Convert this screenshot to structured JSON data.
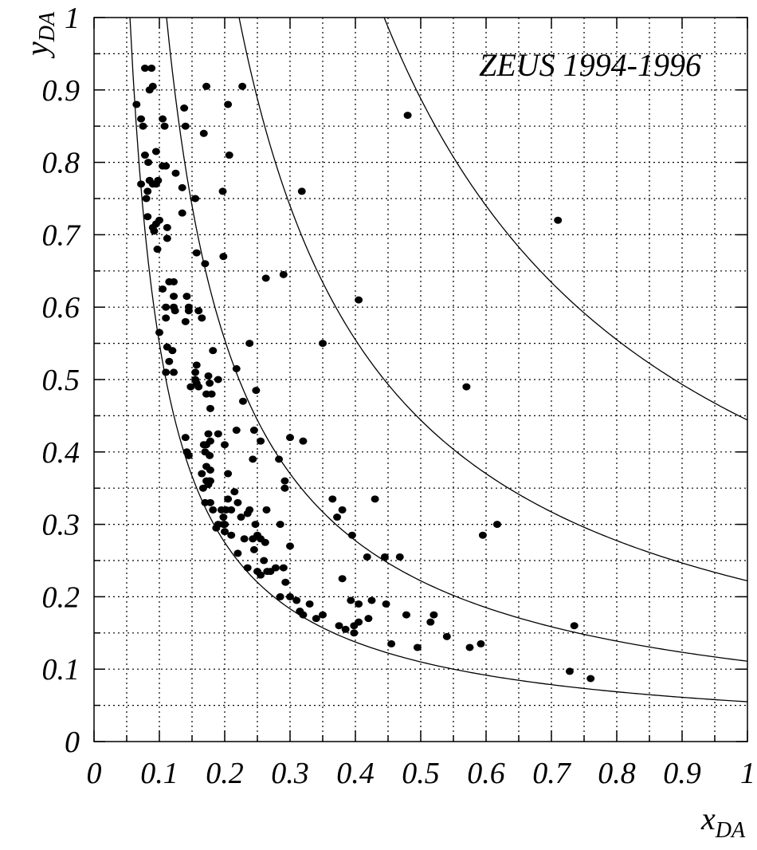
{
  "chart_data": {
    "type": "scatter",
    "title": "",
    "annotation": "ZEUS 1994-1996",
    "xlabel": "x",
    "xlabel_sub": "DA",
    "ylabel": "y",
    "ylabel_sub": "DA",
    "xlim": [
      0,
      1
    ],
    "ylim": [
      0,
      1
    ],
    "grid": true,
    "x_ticks": [
      "0",
      "0.1",
      "0.2",
      "0.3",
      "0.4",
      "0.5",
      "0.6",
      "0.7",
      "0.8",
      "0.9",
      "1"
    ],
    "y_ticks": [
      "0",
      "0.1",
      "0.2",
      "0.3",
      "0.4",
      "0.5",
      "0.6",
      "0.7",
      "0.8",
      "0.9",
      "1"
    ],
    "curves": [
      {
        "k": 0.055
      },
      {
        "k": 0.111
      },
      {
        "k": 0.222
      },
      {
        "k": 0.444
      }
    ],
    "points": [
      [
        0.065,
        0.88
      ],
      [
        0.072,
        0.86
      ],
      [
        0.075,
        0.85
      ],
      [
        0.078,
        0.93
      ],
      [
        0.088,
        0.93
      ],
      [
        0.085,
        0.9
      ],
      [
        0.09,
        0.905
      ],
      [
        0.078,
        0.81
      ],
      [
        0.095,
        0.815
      ],
      [
        0.105,
        0.86
      ],
      [
        0.108,
        0.85
      ],
      [
        0.083,
        0.8
      ],
      [
        0.105,
        0.795
      ],
      [
        0.11,
        0.795
      ],
      [
        0.085,
        0.775
      ],
      [
        0.072,
        0.77
      ],
      [
        0.098,
        0.775
      ],
      [
        0.09,
        0.77
      ],
      [
        0.095,
        0.77
      ],
      [
        0.125,
        0.785
      ],
      [
        0.082,
        0.76
      ],
      [
        0.08,
        0.75
      ],
      [
        0.138,
        0.875
      ],
      [
        0.14,
        0.85
      ],
      [
        0.082,
        0.725
      ],
      [
        0.095,
        0.715
      ],
      [
        0.1,
        0.72
      ],
      [
        0.09,
        0.71
      ],
      [
        0.092,
        0.705
      ],
      [
        0.112,
        0.71
      ],
      [
        0.112,
        0.695
      ],
      [
        0.097,
        0.68
      ],
      [
        0.135,
        0.765
      ],
      [
        0.135,
        0.73
      ],
      [
        0.155,
        0.75
      ],
      [
        0.168,
        0.84
      ],
      [
        0.172,
        0.905
      ],
      [
        0.205,
        0.88
      ],
      [
        0.227,
        0.905
      ],
      [
        0.197,
        0.76
      ],
      [
        0.207,
        0.81
      ],
      [
        0.157,
        0.675
      ],
      [
        0.17,
        0.66
      ],
      [
        0.198,
        0.67
      ],
      [
        0.105,
        0.625
      ],
      [
        0.115,
        0.635
      ],
      [
        0.122,
        0.635
      ],
      [
        0.122,
        0.615
      ],
      [
        0.11,
        0.6
      ],
      [
        0.122,
        0.6
      ],
      [
        0.124,
        0.595
      ],
      [
        0.11,
        0.585
      ],
      [
        0.142,
        0.615
      ],
      [
        0.145,
        0.6
      ],
      [
        0.145,
        0.595
      ],
      [
        0.16,
        0.595
      ],
      [
        0.14,
        0.58
      ],
      [
        0.165,
        0.585
      ],
      [
        0.1,
        0.565
      ],
      [
        0.112,
        0.545
      ],
      [
        0.12,
        0.54
      ],
      [
        0.115,
        0.525
      ],
      [
        0.11,
        0.51
      ],
      [
        0.122,
        0.51
      ],
      [
        0.157,
        0.52
      ],
      [
        0.148,
        0.49
      ],
      [
        0.155,
        0.5
      ],
      [
        0.155,
        0.51
      ],
      [
        0.157,
        0.495
      ],
      [
        0.16,
        0.49
      ],
      [
        0.175,
        0.505
      ],
      [
        0.177,
        0.495
      ],
      [
        0.172,
        0.48
      ],
      [
        0.18,
        0.48
      ],
      [
        0.178,
        0.46
      ],
      [
        0.19,
        0.5
      ],
      [
        0.182,
        0.54
      ],
      [
        0.238,
        0.55
      ],
      [
        0.228,
        0.47
      ],
      [
        0.218,
        0.515
      ],
      [
        0.248,
        0.485
      ],
      [
        0.263,
        0.64
      ],
      [
        0.29,
        0.645
      ],
      [
        0.318,
        0.76
      ],
      [
        0.35,
        0.55
      ],
      [
        0.405,
        0.61
      ],
      [
        0.48,
        0.865
      ],
      [
        0.57,
        0.49
      ],
      [
        0.71,
        0.72
      ],
      [
        0.14,
        0.42
      ],
      [
        0.142,
        0.4
      ],
      [
        0.145,
        0.395
      ],
      [
        0.168,
        0.41
      ],
      [
        0.17,
        0.4
      ],
      [
        0.172,
        0.41
      ],
      [
        0.175,
        0.425
      ],
      [
        0.178,
        0.415
      ],
      [
        0.177,
        0.395
      ],
      [
        0.172,
        0.38
      ],
      [
        0.178,
        0.375
      ],
      [
        0.19,
        0.425
      ],
      [
        0.2,
        0.41
      ],
      [
        0.218,
        0.43
      ],
      [
        0.245,
        0.43
      ],
      [
        0.255,
        0.415
      ],
      [
        0.243,
        0.39
      ],
      [
        0.205,
        0.37
      ],
      [
        0.165,
        0.37
      ],
      [
        0.172,
        0.36
      ],
      [
        0.178,
        0.36
      ],
      [
        0.175,
        0.355
      ],
      [
        0.176,
        0.36
      ],
      [
        0.167,
        0.35
      ],
      [
        0.17,
        0.33
      ],
      [
        0.178,
        0.33
      ],
      [
        0.182,
        0.32
      ],
      [
        0.195,
        0.32
      ],
      [
        0.198,
        0.31
      ],
      [
        0.202,
        0.32
      ],
      [
        0.205,
        0.335
      ],
      [
        0.21,
        0.32
      ],
      [
        0.215,
        0.345
      ],
      [
        0.22,
        0.33
      ],
      [
        0.19,
        0.3
      ],
      [
        0.198,
        0.3
      ],
      [
        0.2,
        0.3
      ],
      [
        0.2,
        0.29
      ],
      [
        0.187,
        0.295
      ],
      [
        0.225,
        0.31
      ],
      [
        0.235,
        0.315
      ],
      [
        0.238,
        0.32
      ],
      [
        0.23,
        0.28
      ],
      [
        0.243,
        0.28
      ],
      [
        0.247,
        0.3
      ],
      [
        0.25,
        0.285
      ],
      [
        0.255,
        0.28
      ],
      [
        0.262,
        0.275
      ],
      [
        0.264,
        0.32
      ],
      [
        0.285,
        0.3
      ],
      [
        0.245,
        0.265
      ],
      [
        0.21,
        0.285
      ],
      [
        0.22,
        0.26
      ],
      [
        0.235,
        0.24
      ],
      [
        0.25,
        0.235
      ],
      [
        0.255,
        0.23
      ],
      [
        0.26,
        0.25
      ],
      [
        0.265,
        0.235
      ],
      [
        0.27,
        0.235
      ],
      [
        0.278,
        0.24
      ],
      [
        0.29,
        0.24
      ],
      [
        0.3,
        0.27
      ],
      [
        0.293,
        0.22
      ],
      [
        0.3,
        0.42
      ],
      [
        0.32,
        0.415
      ],
      [
        0.283,
        0.39
      ],
      [
        0.292,
        0.36
      ],
      [
        0.292,
        0.35
      ],
      [
        0.285,
        0.2
      ],
      [
        0.3,
        0.2
      ],
      [
        0.31,
        0.195
      ],
      [
        0.315,
        0.18
      ],
      [
        0.32,
        0.175
      ],
      [
        0.33,
        0.19
      ],
      [
        0.34,
        0.17
      ],
      [
        0.35,
        0.175
      ],
      [
        0.365,
        0.335
      ],
      [
        0.372,
        0.31
      ],
      [
        0.38,
        0.32
      ],
      [
        0.395,
        0.285
      ],
      [
        0.43,
        0.335
      ],
      [
        0.418,
        0.255
      ],
      [
        0.445,
        0.255
      ],
      [
        0.468,
        0.255
      ],
      [
        0.38,
        0.225
      ],
      [
        0.393,
        0.195
      ],
      [
        0.405,
        0.19
      ],
      [
        0.425,
        0.195
      ],
      [
        0.447,
        0.19
      ],
      [
        0.375,
        0.16
      ],
      [
        0.385,
        0.155
      ],
      [
        0.398,
        0.15
      ],
      [
        0.398,
        0.16
      ],
      [
        0.405,
        0.165
      ],
      [
        0.42,
        0.17
      ],
      [
        0.478,
        0.175
      ],
      [
        0.515,
        0.165
      ],
      [
        0.52,
        0.175
      ],
      [
        0.455,
        0.135
      ],
      [
        0.495,
        0.13
      ],
      [
        0.54,
        0.145
      ],
      [
        0.575,
        0.13
      ],
      [
        0.592,
        0.135
      ],
      [
        0.595,
        0.285
      ],
      [
        0.617,
        0.3
      ],
      [
        0.735,
        0.16
      ],
      [
        0.728,
        0.097
      ],
      [
        0.76,
        0.087
      ]
    ]
  }
}
